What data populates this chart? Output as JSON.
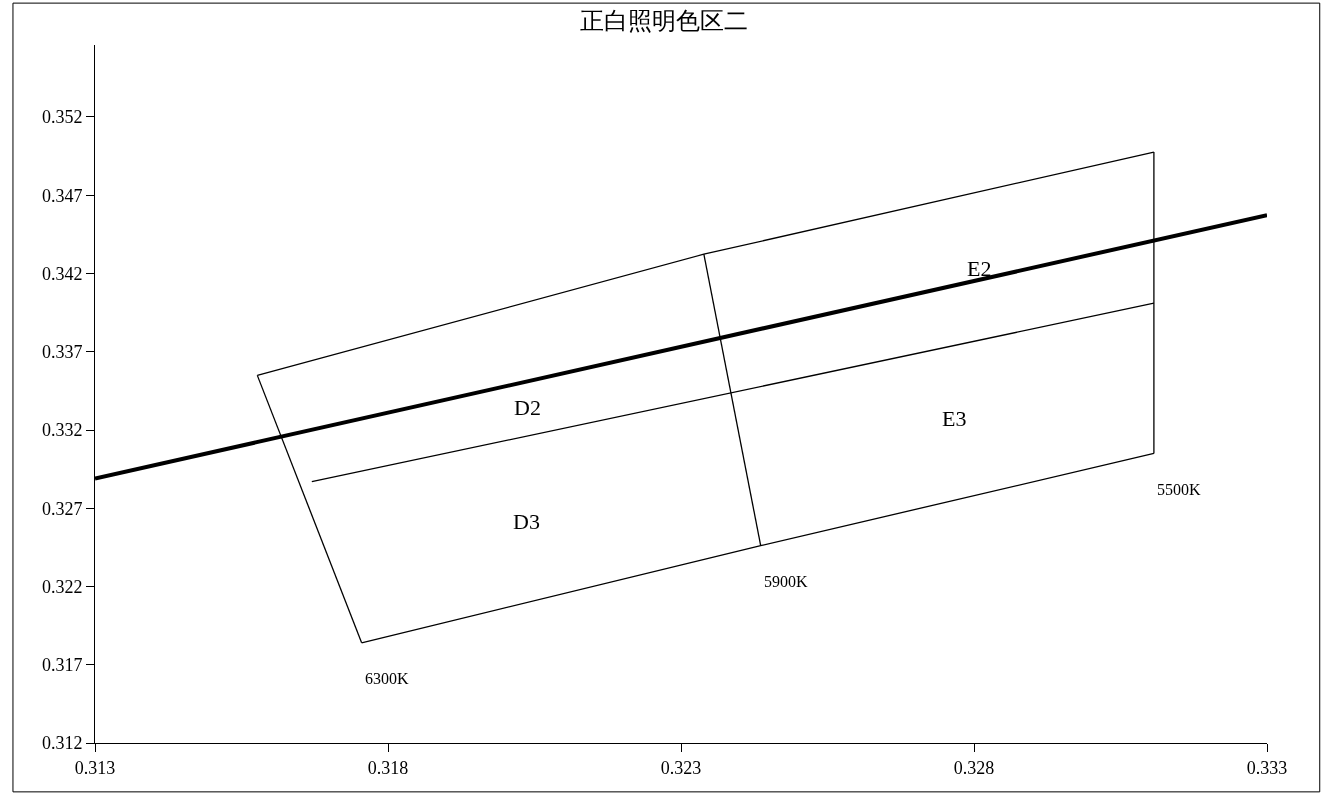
{
  "chart_data": {
    "type": "line",
    "title": "正白照明色区二",
    "xlim": [
      0.313,
      0.333
    ],
    "ylim": [
      0.312,
      0.3566
    ],
    "xticks": [
      0.313,
      0.318,
      0.323,
      0.328,
      0.333
    ],
    "yticks": [
      0.312,
      0.317,
      0.322,
      0.327,
      0.332,
      0.337,
      0.342,
      0.347,
      0.352
    ],
    "series": [
      {
        "color": "#000000",
        "x": [
          0.313,
          0.333
        ],
        "values": [
          0.3289,
          0.34573
        ]
      },
      {
        "color": "#000000",
        "x": [
          0.31577,
          0.32339,
          0.33107
        ],
        "values": [
          0.33549,
          0.34323,
          0.34976
        ]
      },
      {
        "color": "#000000",
        "x": [
          0.31755,
          0.32436,
          0.33107
        ],
        "values": [
          0.3184,
          0.32461,
          0.3305
        ]
      },
      {
        "color": "#000000",
        "x": [
          0.31577,
          0.31755
        ],
        "values": [
          0.33549,
          0.3184
        ]
      },
      {
        "color": "#000000",
        "x": [
          0.33107,
          0.33107
        ],
        "values": [
          0.34976,
          0.3305
        ]
      },
      {
        "color": "#000000",
        "x": [
          0.3167,
          0.33107
        ],
        "values": [
          0.3287,
          0.3401
        ]
      },
      {
        "color": "#000000",
        "x": [
          0.32339,
          0.32436
        ],
        "values": [
          0.34323,
          0.32461
        ]
      }
    ],
    "annotations": [
      "D2",
      "E2",
      "E3",
      "D3",
      {
        "text": "5500K",
        "x": 0.33107,
        "y": 0.3305
      },
      {
        "text": "5900K",
        "x": 0.32436,
        "y": 0.32461
      },
      {
        "text": "6300K",
        "x": 0.31755,
        "y": 0.3184
      }
    ],
    "marker": "none"
  }
}
